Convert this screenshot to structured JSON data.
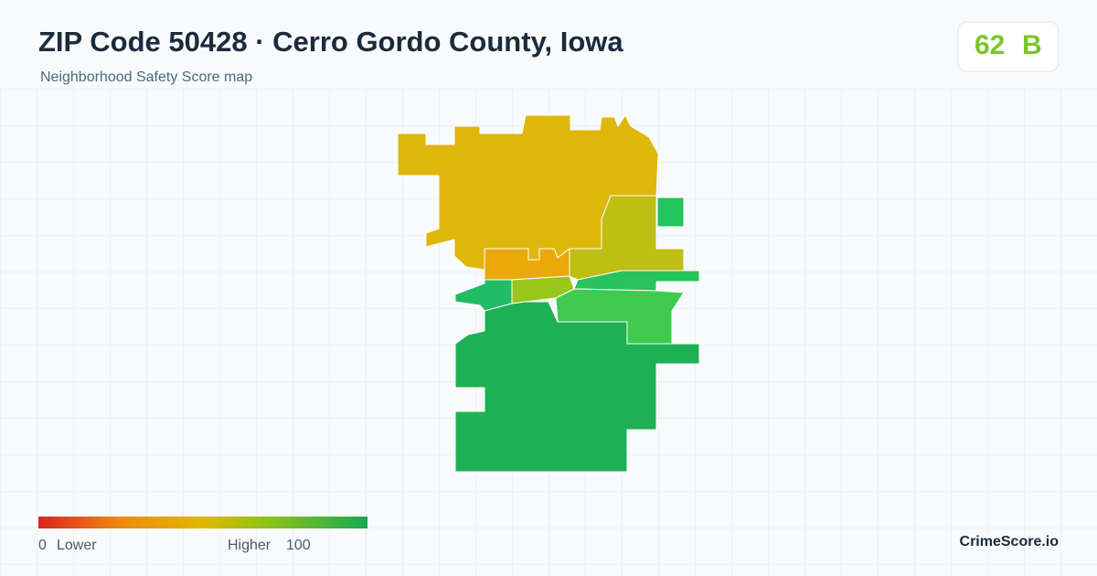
{
  "header": {
    "title": "ZIP Code 50428 · Cerro Gordo County, Iowa",
    "subtitle": "Neighborhood Safety Score map"
  },
  "score": {
    "value": "62",
    "grade": "B"
  },
  "legend": {
    "min": "0",
    "min_label": "Lower",
    "max_label": "Higher",
    "max": "100"
  },
  "brand": "CrimeScore.io"
}
